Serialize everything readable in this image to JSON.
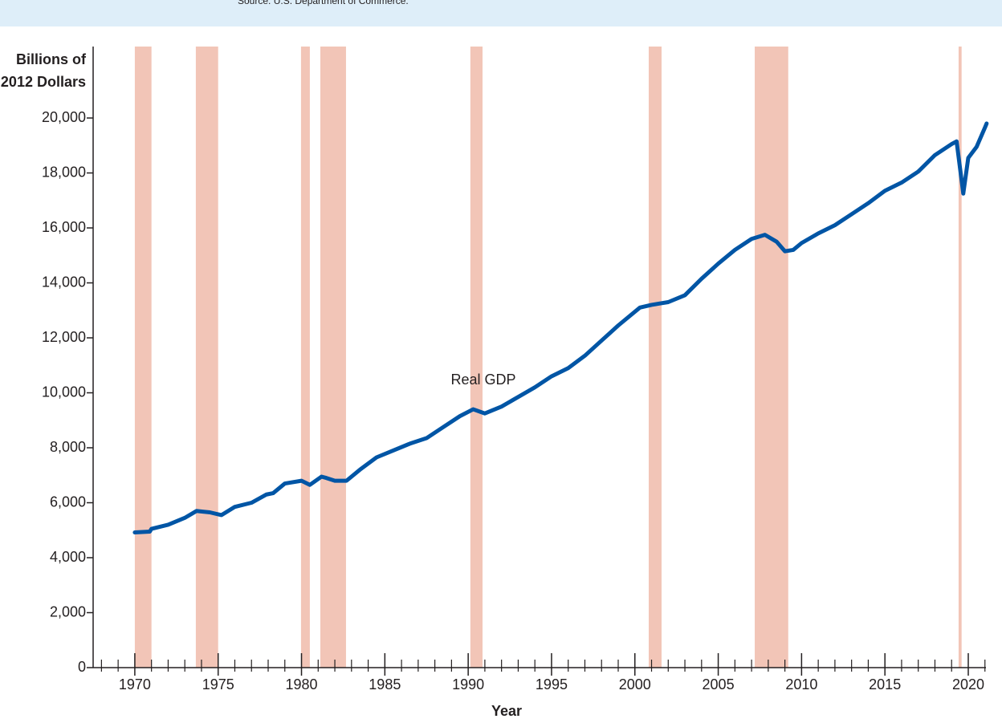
{
  "chart_data": {
    "type": "line",
    "source": "Source: U.S. Department of Commerce.",
    "y_label": [
      "Billions of",
      "2012 Dollars"
    ],
    "x_label": "Year",
    "x": [
      1970.0,
      1970.9,
      1971,
      1972,
      1973.0,
      1973.7,
      1974.5,
      1975.2,
      1976,
      1977,
      1977.9,
      1978.3,
      1979,
      1980.0,
      1980.5,
      1981.2,
      1981.5,
      1982.0,
      1982.7,
      1983.5,
      1984.5,
      1985.5,
      1986.5,
      1987.5,
      1988.5,
      1989.5,
      1990.3,
      1991.0,
      1992,
      1993,
      1994,
      1995,
      1996,
      1997,
      1998,
      1999,
      2000.3,
      2001.0,
      2001.5,
      2002,
      2003,
      2004,
      2005,
      2006,
      2007,
      2007.8,
      2008.5,
      2009.0,
      2009.5,
      2010,
      2011,
      2012,
      2013,
      2014,
      2015,
      2016,
      2017,
      2018,
      2019.0,
      2019.3,
      2019.7,
      2020.0,
      2020.5,
      2021.0,
      2021.1
    ],
    "series": [
      {
        "name": "Real GDP",
        "color": "#0055a5",
        "values": [
          4920,
          4950,
          5050,
          5200,
          5450,
          5700,
          5650,
          5550,
          5850,
          6000,
          6300,
          6350,
          6700,
          6800,
          6650,
          6950,
          6900,
          6800,
          6800,
          7200,
          7650,
          7900,
          8150,
          8350,
          8750,
          9150,
          9400,
          9250,
          9500,
          9850,
          10200,
          10600,
          10900,
          11350,
          11900,
          12450,
          13100,
          13200,
          13250,
          13300,
          13550,
          14150,
          14700,
          15200,
          15600,
          15750,
          15500,
          15150,
          15200,
          15450,
          15800,
          16100,
          16500,
          16900,
          17350,
          17650,
          18050,
          18650,
          19050,
          19150,
          17250,
          18550,
          18950,
          19650,
          19800
        ]
      }
    ],
    "recessions": {
      "color": "#f2c5b7",
      "spans": [
        [
          1970.0,
          1971.0
        ],
        [
          1973.66,
          1975.0
        ],
        [
          1979.97,
          1980.5
        ],
        [
          1981.13,
          1982.67
        ],
        [
          1990.13,
          1990.86
        ],
        [
          2000.83,
          2001.6
        ],
        [
          2007.19,
          2009.2
        ],
        [
          2019.42,
          2019.6
        ]
      ]
    },
    "xlim": [
      1967.5,
      2021.06
    ],
    "ylim": [
      0,
      22600
    ],
    "xticks": [
      1970,
      1975,
      1980,
      1985,
      1990,
      1995,
      2000,
      2005,
      2010,
      2015,
      2020
    ],
    "xminorticks": [
      1968,
      1969,
      1971,
      1972,
      1973,
      1974,
      1976,
      1977,
      1978,
      1979,
      1981,
      1982,
      1983,
      1984,
      1986,
      1987,
      1988,
      1989,
      1991,
      1992,
      1993,
      1994,
      1996,
      1997,
      1998,
      1999,
      2001,
      2002,
      2003,
      2004,
      2006,
      2007,
      2008,
      2009,
      2011,
      2012,
      2013,
      2014,
      2016,
      2017,
      2018,
      2019,
      2021
    ],
    "yticks": [
      0,
      {
        "value": 2000,
        "label": "2,000"
      },
      {
        "value": 4000,
        "label": "4,000"
      },
      {
        "value": 6000,
        "label": "6,000"
      },
      {
        "value": 8000,
        "label": "8,000"
      },
      {
        "value": 10000,
        "label": "10,000"
      },
      {
        "value": 12000,
        "label": "12,000"
      },
      {
        "value": 14000,
        "label": "14,000"
      },
      {
        "value": 16000,
        "label": "16,000"
      },
      {
        "value": 18000,
        "label": "18,000"
      },
      {
        "value": 20000,
        "label": "20,000"
      }
    ]
  }
}
